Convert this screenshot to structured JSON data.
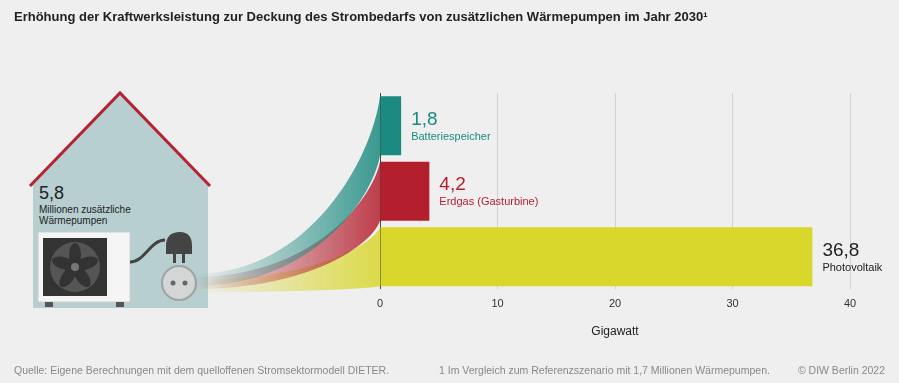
{
  "chart_data": {
    "type": "bar",
    "orientation": "horizontal",
    "title": "Erhöhung der Kraftwerksleistung zur Deckung des Strombedarfs von zusätzlichen Wärmepumpen im Jahr 2030¹",
    "categories": [
      "Batteriespeicher",
      "Erdgas (Gasturbine)",
      "Photovoltaik"
    ],
    "values": [
      1.8,
      4.2,
      36.8
    ],
    "value_labels": [
      "1,8",
      "4,2",
      "36,8"
    ],
    "colors": [
      "#1b8a80",
      "#b41f2e",
      "#d9d62c"
    ],
    "xlabel": "Gigawatt",
    "xlim": [
      0,
      40
    ],
    "xticks": [
      0,
      10,
      20,
      30,
      40
    ],
    "grid": true,
    "data_labels": true,
    "tick_labels": "x",
    "annotations": {
      "house_value": "5,8",
      "house_label": [
        "Millionen zusätzliche",
        "Wärmepumpen"
      ],
      "source": "Quelle: Eigene Berechnungen mit dem quelloffenen Stromsektormodell DIETER.",
      "footnote": "1  Im Vergleich zum Referenzszenario mit 1,7 Millionen Wärmepumpen.",
      "copyright": "© DIW Berlin 2022"
    }
  }
}
